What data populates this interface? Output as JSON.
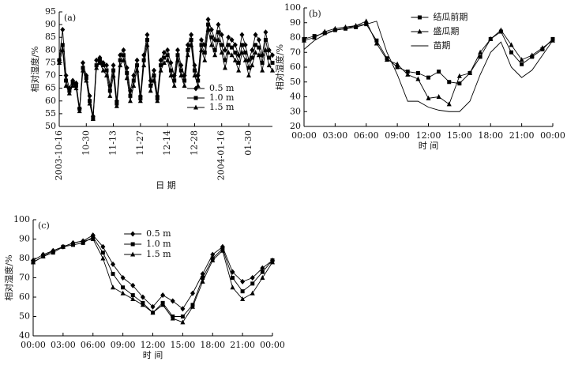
{
  "chart_data": [
    {
      "type": "line",
      "panel": "(a)",
      "xlabel": "日 期",
      "ylabel": "相对湿度/%",
      "categories": [
        "2003-10-16",
        null,
        null,
        null,
        null,
        null,
        null,
        null,
        "10-30",
        null,
        null,
        null,
        null,
        null,
        null,
        null,
        "11-13",
        null,
        null,
        null,
        null,
        null,
        null,
        null,
        "11-27",
        null,
        null,
        null,
        null,
        null,
        null,
        null,
        "12-14",
        null,
        null,
        null,
        null,
        null,
        null,
        null,
        "12-28",
        null,
        null,
        null,
        null,
        null,
        null,
        null,
        "2004-01-16",
        null,
        null,
        null,
        null,
        null,
        null,
        null,
        "01-30",
        null,
        null,
        null,
        null,
        null,
        null,
        null
      ],
      "ylim": [
        50,
        95
      ],
      "yticks": [
        50,
        55,
        60,
        65,
        70,
        75,
        80,
        85,
        90,
        95
      ],
      "legend": "lower right",
      "series": [
        {
          "name": "0.5 m",
          "color": "#000000",
          "marker": "diamond",
          "values": [
            76,
            88,
            70,
            65,
            68,
            67,
            57,
            75,
            70,
            62,
            54,
            76,
            77,
            75,
            74,
            66,
            74,
            60,
            78,
            80,
            73,
            64,
            70,
            76,
            62,
            78,
            86,
            68,
            72,
            62,
            76,
            79,
            80,
            75,
            70,
            80,
            74,
            70,
            82,
            86,
            74,
            70,
            84,
            82,
            92,
            88,
            84,
            90,
            86,
            80,
            85,
            84,
            82,
            78,
            86,
            82,
            76,
            80,
            86,
            84,
            78,
            87,
            80,
            78
          ]
        },
        {
          "name": "1.0 m",
          "color": "#000000",
          "marker": "square",
          "values": [
            76,
            82,
            68,
            64,
            67,
            66,
            57,
            73,
            69,
            60,
            53,
            74,
            76,
            74,
            72,
            64,
            72,
            59,
            76,
            78,
            71,
            62,
            68,
            74,
            61,
            76,
            84,
            66,
            70,
            61,
            74,
            77,
            78,
            72,
            68,
            78,
            72,
            68,
            80,
            84,
            72,
            68,
            82,
            79,
            90,
            85,
            80,
            87,
            82,
            76,
            82,
            81,
            79,
            75,
            82,
            79,
            73,
            77,
            82,
            81,
            75,
            84,
            77,
            75
          ]
        },
        {
          "name": "1.5 m",
          "color": "#000000",
          "marker": "triangle",
          "values": [
            75,
            80,
            66,
            63,
            66,
            65,
            56,
            72,
            68,
            59,
            53,
            73,
            75,
            72,
            70,
            62,
            70,
            58,
            74,
            76,
            69,
            60,
            66,
            72,
            60,
            74,
            82,
            64,
            68,
            60,
            72,
            75,
            76,
            70,
            66,
            76,
            70,
            66,
            78,
            82,
            70,
            66,
            80,
            76,
            88,
            82,
            78,
            84,
            79,
            73,
            79,
            78,
            76,
            72,
            79,
            76,
            70,
            74,
            79,
            78,
            72,
            80,
            74,
            72
          ]
        }
      ]
    },
    {
      "type": "line",
      "panel": "(b)",
      "xlabel": "时 间",
      "ylabel": "相对湿度/%",
      "categories": [
        "00:00",
        null,
        null,
        "03:00",
        null,
        null,
        "06:00",
        null,
        null,
        "09:00",
        null,
        null,
        "12:00",
        null,
        null,
        "15:00",
        null,
        null,
        "18:00",
        null,
        null,
        "21:00",
        null,
        null,
        "00:00"
      ],
      "ylim": [
        20,
        100
      ],
      "yticks": [
        20,
        30,
        40,
        50,
        60,
        70,
        80,
        90,
        100
      ],
      "legend": "upper right",
      "series": [
        {
          "name": "结瓜前期",
          "color": "#000000",
          "marker": "square",
          "values": [
            79,
            81,
            83,
            85,
            86,
            87,
            89,
            78,
            66,
            60,
            57,
            56,
            53,
            57,
            50,
            49,
            56,
            67,
            79,
            84,
            70,
            62,
            67,
            72,
            79
          ]
        },
        {
          "name": "盛瓜期",
          "color": "#000000",
          "marker": "triangle",
          "values": [
            78,
            80,
            84,
            86,
            87,
            88,
            91,
            76,
            65,
            62,
            55,
            52,
            39,
            40,
            35,
            54,
            56,
            70,
            79,
            85,
            75,
            65,
            68,
            73,
            78
          ]
        },
        {
          "name": "苗期",
          "color": "#000000",
          "marker": "none",
          "values": [
            72,
            78,
            82,
            85,
            86,
            88,
            89,
            91,
            70,
            55,
            37,
            37,
            33,
            31,
            30,
            30,
            37,
            55,
            70,
            77,
            60,
            53,
            58,
            68,
            78
          ]
        }
      ]
    },
    {
      "type": "line",
      "panel": "(c)",
      "xlabel": "时 间",
      "ylabel": "相对湿度/%",
      "categories": [
        "00:00",
        null,
        null,
        "03:00",
        null,
        null,
        "06:00",
        null,
        null,
        "09:00",
        null,
        null,
        "12:00",
        null,
        null,
        "15:00",
        null,
        null,
        "18:00",
        null,
        null,
        "21:00",
        null,
        null,
        "00:00"
      ],
      "ylim": [
        40,
        100
      ],
      "yticks": [
        40,
        50,
        60,
        70,
        80,
        90,
        100
      ],
      "legend": "upper center",
      "series": [
        {
          "name": "0.5 m",
          "color": "#000000",
          "marker": "diamond",
          "values": [
            79,
            82,
            84,
            86,
            88,
            89,
            92,
            86,
            77,
            70,
            66,
            60,
            55,
            61,
            58,
            54,
            62,
            72,
            82,
            86,
            73,
            68,
            70,
            75,
            79
          ]
        },
        {
          "name": "1.0 m",
          "color": "#000000",
          "marker": "square",
          "values": [
            78,
            81,
            83,
            86,
            87,
            88,
            91,
            83,
            72,
            65,
            61,
            57,
            52,
            57,
            50,
            50,
            56,
            70,
            80,
            85,
            70,
            63,
            67,
            73,
            79
          ]
        },
        {
          "name": "1.5 m",
          "color": "#000000",
          "marker": "triangle",
          "values": [
            78,
            81,
            84,
            86,
            88,
            89,
            90,
            80,
            65,
            62,
            59,
            56,
            52,
            56,
            49,
            47,
            55,
            68,
            79,
            84,
            65,
            59,
            62,
            70,
            78
          ]
        }
      ]
    }
  ]
}
